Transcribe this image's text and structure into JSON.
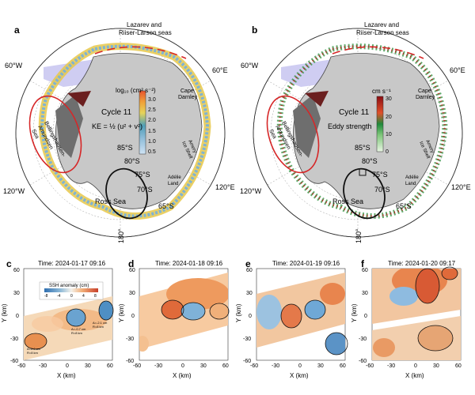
{
  "panel_a": {
    "letter": "a",
    "region_top": [
      "Lazarev and",
      "Riiser-Larsen seas"
    ],
    "lon_60W": "60°W",
    "lon_60E": "60°E",
    "lon_120W": "120°W",
    "lon_120E": "120°E",
    "lon_180": "180°",
    "colorbar_title": "log₁₀ (cm² s⁻²)",
    "colorbar_ticks": [
      "3.0",
      "2.5",
      "2.0",
      "1.5",
      "1.0",
      "0.5"
    ],
    "cycle": "Cycle 11",
    "formula": "KE = ½ (u² + v²)",
    "lat_85": "85°S",
    "lat_80": "80°S",
    "lat_75": "75°S",
    "lat_70": "70°S",
    "lat_65": "65°S",
    "cape_darnley": [
      "Cape",
      "Darnley"
    ],
    "amery": [
      "Amery",
      "Ice Shelf"
    ],
    "adelie": [
      "Adélie",
      "Land"
    ],
    "ross": "Ross Sea",
    "bell": [
      "Bellingshausen-",
      "Amundsen",
      "Sea"
    ]
  },
  "panel_b": {
    "letter": "b",
    "colorbar_title": "cm s⁻¹",
    "colorbar_ticks": [
      "30",
      "20",
      "10",
      "0"
    ],
    "cycle": "Cycle 11",
    "subtitle": "Eddy strength"
  },
  "ssh_legend": {
    "title": "SSH anomaly (cm)",
    "ticks": [
      "-8",
      "-4",
      "0",
      "4",
      "8"
    ]
  },
  "panels_bottom": [
    {
      "letter": "c",
      "time": "Time: 2024-01-17 09:16",
      "ann1": [
        "A=-0.7 cm",
        "R=8 km"
      ],
      "ann2": [
        "A=-2.1 cm",
        "R=8 km"
      ],
      "ann3": [
        "A=2.0 cm",
        "R=8 km"
      ]
    },
    {
      "letter": "d",
      "time": "Time: 2024-01-18 09:16"
    },
    {
      "letter": "e",
      "time": "Time: 2024-01-19 09:16"
    },
    {
      "letter": "f",
      "time": "Time: 2024-01-20 09:17"
    }
  ],
  "axes": {
    "xlabel": "X (km)",
    "ylabel": "Y (km)",
    "xticks": [
      "-60",
      "-30",
      "0",
      "30",
      "60"
    ],
    "yticks": [
      "60",
      "30",
      "0",
      "-30",
      "-60"
    ]
  },
  "colors": {
    "red_outline": "#d62728",
    "black_outline": "#111111",
    "land": "#c8c8c8"
  }
}
